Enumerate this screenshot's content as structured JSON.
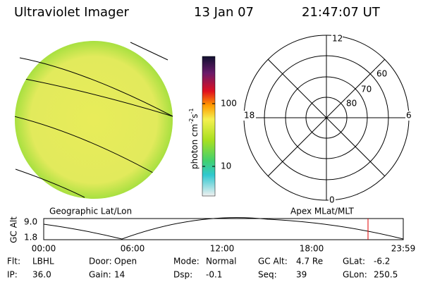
{
  "header": {
    "title": "Ultraviolet Imager",
    "date": "13 Jan 07",
    "time": "21:47:07 UT"
  },
  "colorbar": {
    "label": {
      "unit1": "photon cm",
      "exp1": "-2",
      "unit2": "s",
      "exp2": "-1"
    },
    "ticks": [
      "100",
      "10"
    ]
  },
  "polar": {
    "mlt_labels": [
      "12",
      "18",
      "6",
      "0"
    ],
    "mlat_labels": [
      "60",
      "70",
      "80"
    ]
  },
  "panels": {
    "left": "Geographic Lat/Lon",
    "right": "Apex MLat/MLT"
  },
  "altitude": {
    "axis_label": "GC Alt",
    "yticks": [
      "9.0",
      "1.8"
    ],
    "xticks": [
      "00:00",
      "06:00",
      "12:00",
      "18:00",
      "23:59"
    ]
  },
  "info": {
    "rows": [
      [
        {
          "label": "Flt:",
          "value": "LBHL"
        },
        {
          "label": "Door:",
          "value": "Open"
        },
        {
          "label": "Mode:",
          "value": "Normal"
        },
        {
          "label": "GC Alt:",
          "value": "4.7 Re"
        },
        {
          "label": "GLat:",
          "value": "-6.2"
        }
      ],
      [
        {
          "label": "IP:",
          "value": "36.0"
        },
        {
          "label": "Gain:",
          "value": "14"
        },
        {
          "label": "Dsp:",
          "value": "-0.1"
        },
        {
          "label": "Seq:",
          "value": "39"
        },
        {
          "label": "GLon:",
          "value": "250.5"
        }
      ]
    ]
  }
}
